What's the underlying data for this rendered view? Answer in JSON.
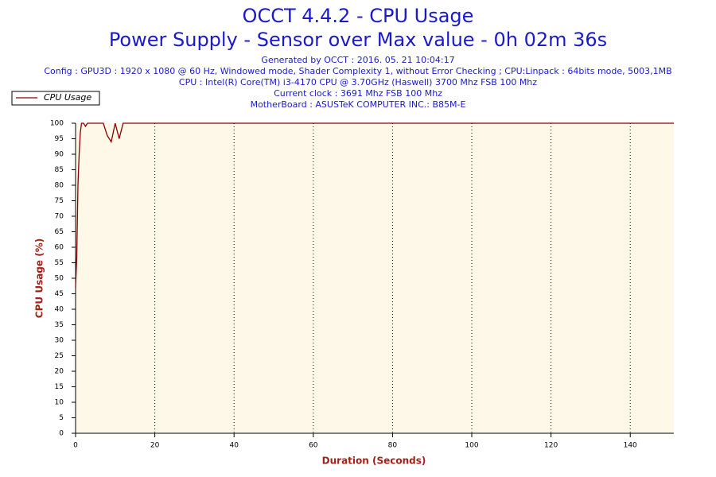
{
  "chart_data": {
    "type": "line",
    "title": "OCCT 4.4.2 - CPU Usage",
    "subtitle": "Power Supply - Sensor over Max value - 0h 02m 36s",
    "info": [
      "Generated by OCCT : 2016. 05. 21 10:04:17",
      "Config : GPU3D : 1920 x 1080 @ 60 Hz, Windowed mode, Shader Complexity 1, without Error Checking ; CPU:Linpack : 64bits mode, 5003,1MB",
      "CPU : Intel(R) Core(TM) i3-4170 CPU @ 3.70GHz (Haswell) 3700 Mhz FSB 100 Mhz",
      "Current clock : 3691 Mhz FSB 100 Mhz",
      "MotherBoard : ASUSTeK COMPUTER INC.: B85M-E"
    ],
    "x_label": "Duration (Seconds)",
    "y_label": "CPU Usage (%)",
    "x": [
      0,
      0.3,
      0.6,
      0.9,
      1.2,
      1.5,
      2,
      2.5,
      3,
      7,
      8,
      9,
      10,
      11,
      12,
      151
    ],
    "series": [
      {
        "name": "CPU Usage",
        "color": "#8b0000",
        "values": [
          47,
          57,
          80,
          90,
          97,
          100,
          100,
          99,
          100,
          100,
          96,
          94,
          100,
          95,
          100,
          100
        ]
      }
    ],
    "xlim": [
      0,
      151
    ],
    "ylim": [
      0,
      100
    ],
    "xticks": [
      0,
      20,
      40,
      60,
      80,
      100,
      120,
      140
    ],
    "yticks": [
      0,
      5,
      10,
      15,
      20,
      25,
      30,
      35,
      40,
      45,
      50,
      55,
      60,
      65,
      70,
      75,
      80,
      85,
      90,
      95,
      100
    ],
    "grid": "x",
    "legend": "top-left"
  }
}
